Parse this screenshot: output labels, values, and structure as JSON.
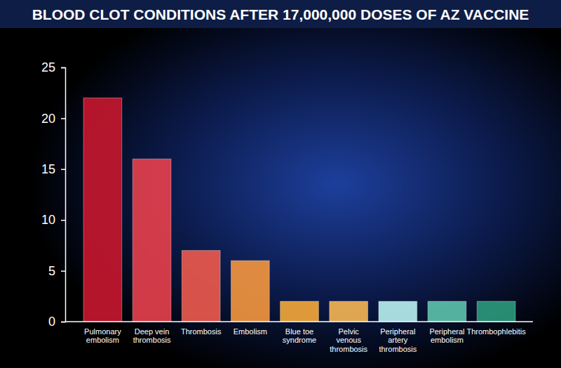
{
  "chart_data": {
    "type": "bar",
    "title": "BLOOD CLOT CONDITIONS AFTER 17,000,000 DOSES OF AZ VACCINE",
    "categories": [
      "Pulmonary embolism",
      "Deep vein thrombosis",
      "Thrombosis",
      "Embolism",
      "Blue toe syndrome",
      "Pelvic venous thrombosis",
      "Peripheral artery thrombosis",
      "Peripheral embolism",
      "Thrombophlebitis"
    ],
    "values": [
      22,
      16,
      7,
      6,
      2,
      2,
      2,
      2,
      2
    ],
    "colors": [
      "#c8172f",
      "#e8404d",
      "#ee5a4c",
      "#f5973f",
      "#f6a93a",
      "#f7b654",
      "#b9f1ef",
      "#5ec3ac",
      "#2b9a7c"
    ],
    "ylim": [
      0,
      25
    ],
    "yticks": [
      0,
      5,
      10,
      15,
      20,
      25
    ],
    "grid": false
  }
}
